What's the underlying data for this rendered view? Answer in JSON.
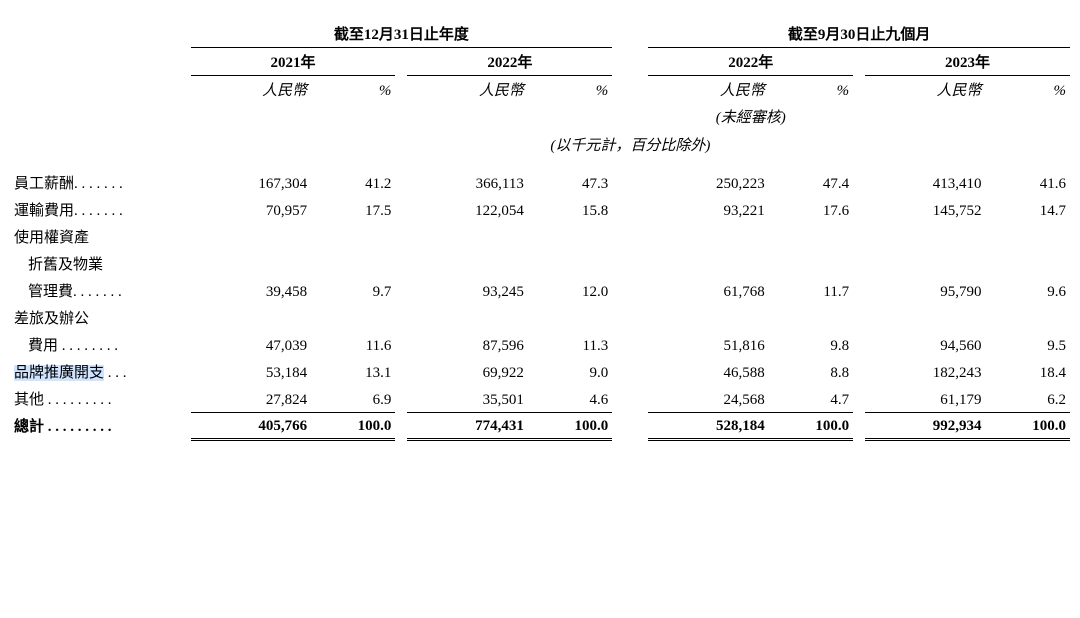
{
  "periods": {
    "year_end": "截至12月31日止年度",
    "nine_months": "截至9月30日止九個月"
  },
  "years": {
    "y2021": "2021年",
    "y2022": "2022年",
    "y2022_9m": "2022年",
    "y2023_9m": "2023年"
  },
  "subheaders": {
    "rmb": "人民幣",
    "pct": "%",
    "unaudited": "(未經審核)"
  },
  "unit_note": "(以千元計，百分比除外)",
  "rows": {
    "r0": {
      "label": "員工薪酬. . . . . . .",
      "v21": "167,304",
      "p21": "41.2",
      "v22": "366,113",
      "p22": "47.3",
      "v22_9": "250,223",
      "p22_9": "47.4",
      "v23_9": "413,410",
      "p23_9": "41.6"
    },
    "r1": {
      "label": "運輸費用. . . . . . .",
      "v21": "70,957",
      "p21": "17.5",
      "v22": "122,054",
      "p22": "15.8",
      "v22_9": "93,221",
      "p22_9": "17.6",
      "v23_9": "145,752",
      "p23_9": "14.7"
    },
    "r2a": {
      "label": "使用權資產"
    },
    "r2b": {
      "label": "折舊及物業"
    },
    "r2c": {
      "label": "管理費. . . . . . .",
      "v21": "39,458",
      "p21": "9.7",
      "v22": "93,245",
      "p22": "12.0",
      "v22_9": "61,768",
      "p22_9": "11.7",
      "v23_9": "95,790",
      "p23_9": "9.6"
    },
    "r3a": {
      "label": "差旅及辦公"
    },
    "r3b": {
      "label": "費用  . . . . . . . .",
      "v21": "47,039",
      "p21": "11.6",
      "v22": "87,596",
      "p22": "11.3",
      "v22_9": "51,816",
      "p22_9": "9.8",
      "v23_9": "94,560",
      "p23_9": "9.5"
    },
    "r4": {
      "label": "品牌推廣開支",
      "label_tail": " . . .",
      "v21": "53,184",
      "p21": "13.1",
      "v22": "69,922",
      "p22": "9.0",
      "v22_9": "46,588",
      "p22_9": "8.8",
      "v23_9": "182,243",
      "p23_9": "18.4"
    },
    "r5": {
      "label": "其他  . . . . . . . . .",
      "v21": "27,824",
      "p21": "6.9",
      "v22": "35,501",
      "p22": "4.6",
      "v22_9": "24,568",
      "p22_9": "4.7",
      "v23_9": "61,179",
      "p23_9": "6.2"
    },
    "total": {
      "label": "總計  . . . . . . . . .",
      "v21": "405,766",
      "p21": "100.0",
      "v22": "774,431",
      "p22": "100.0",
      "v22_9": "528,184",
      "p22_9": "100.0",
      "v23_9": "992,934",
      "p23_9": "100.0"
    }
  }
}
